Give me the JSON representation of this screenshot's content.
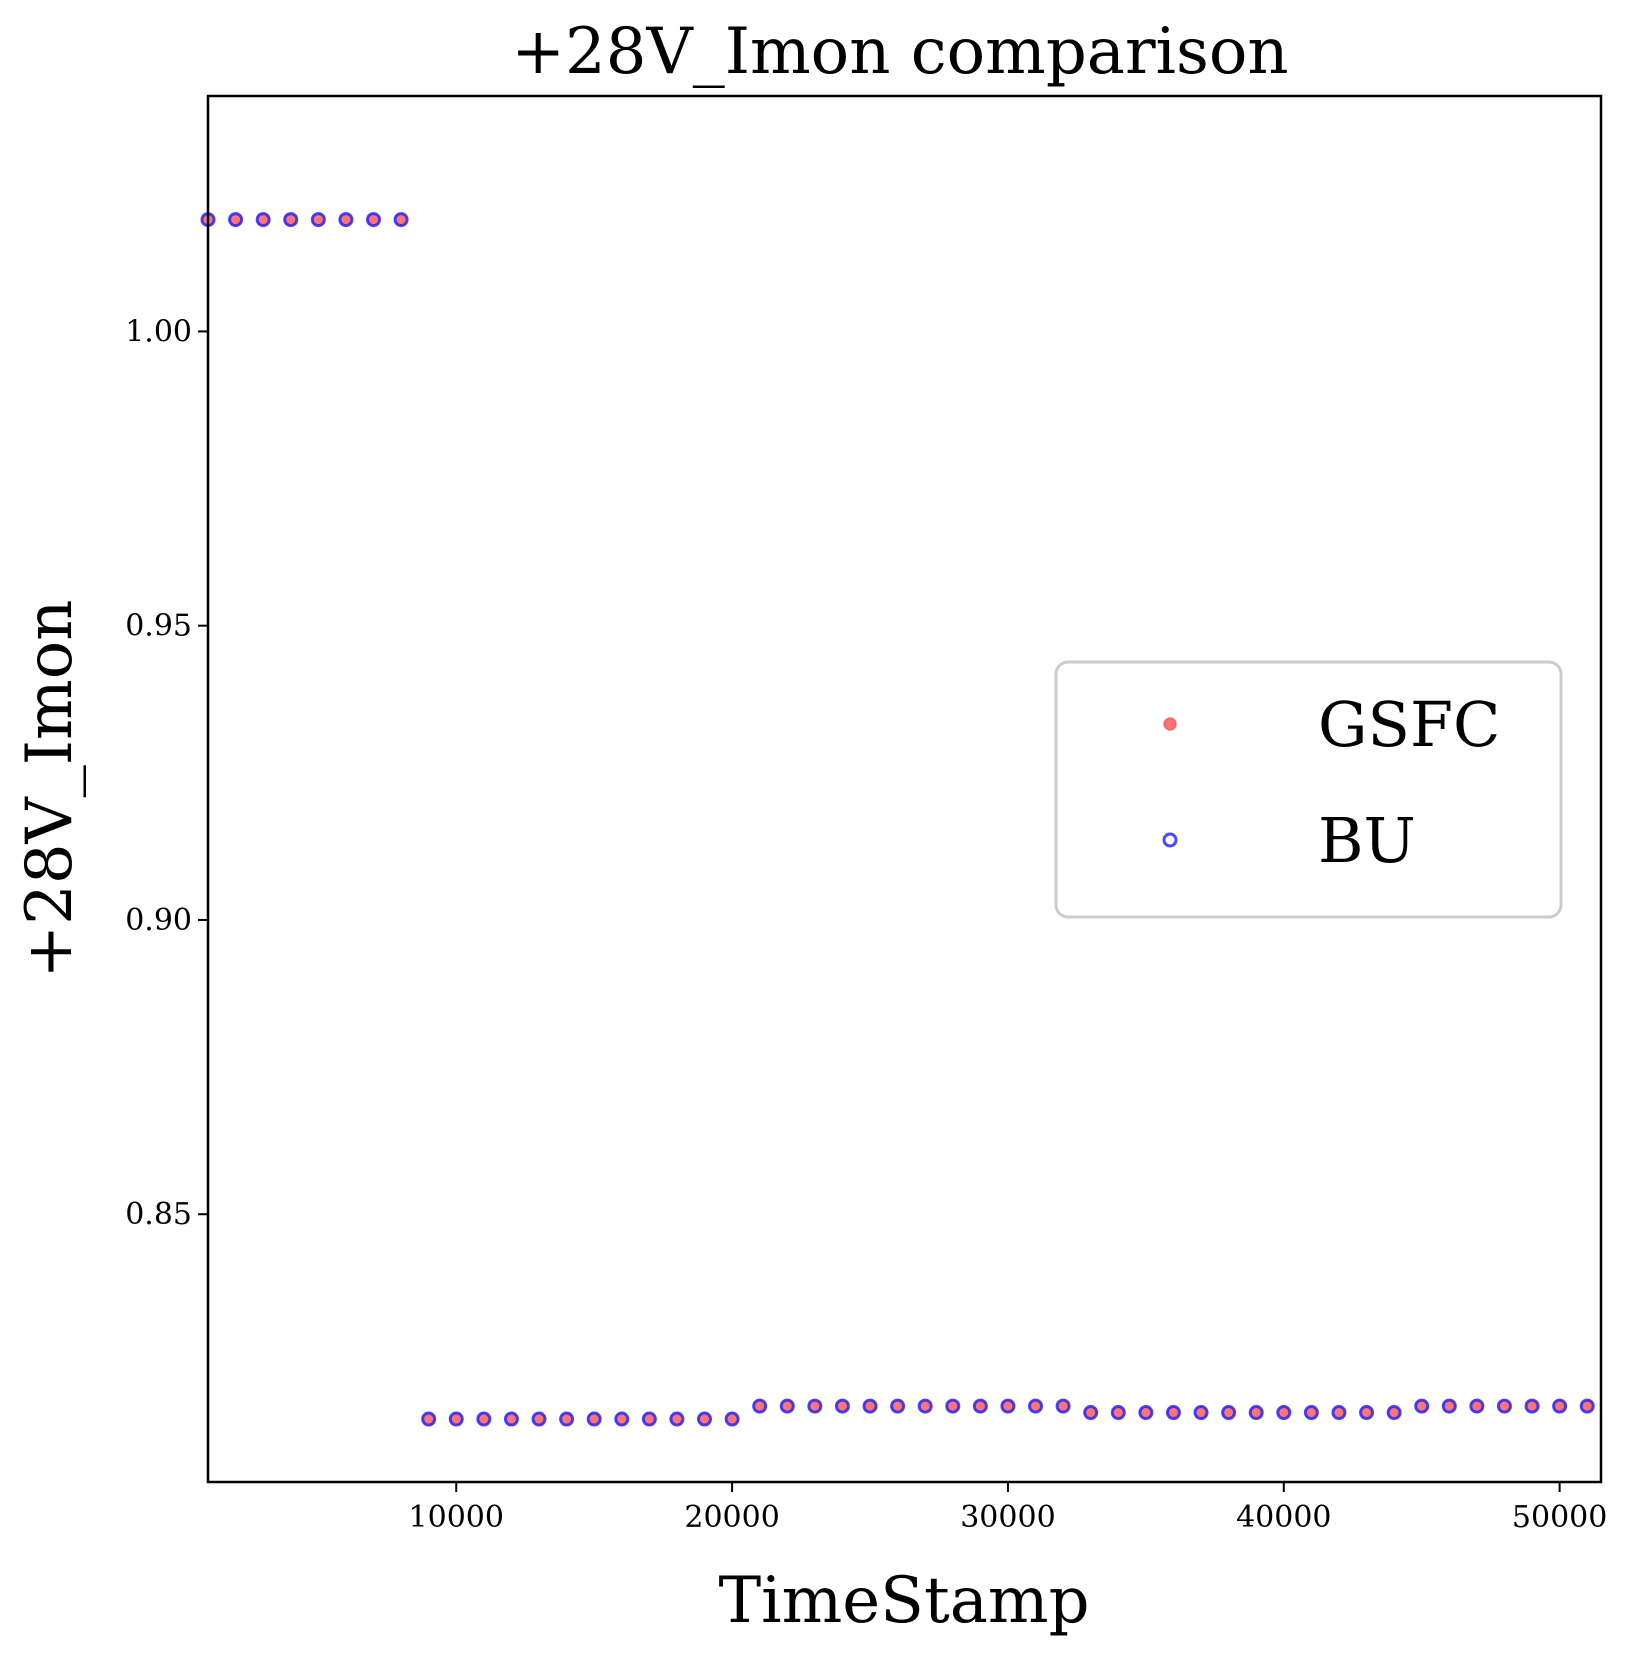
{
  "chart_data": {
    "type": "scatter",
    "title": "+28V_Imon comparison",
    "xlabel": "TimeStamp",
    "ylabel": "+28V_Imon",
    "xlim": [
      1000,
      51500
    ],
    "ylim": [
      0.8045,
      1.04
    ],
    "xticks": [
      10000,
      20000,
      30000,
      40000,
      50000
    ],
    "xtick_labels": [
      "10000",
      "20000",
      "30000",
      "40000",
      "50000"
    ],
    "yticks": [
      0.85,
      0.9,
      0.95,
      1.0
    ],
    "ytick_labels": [
      "0.85",
      "0.90",
      "0.95",
      "1.00"
    ],
    "grid": false,
    "legend_position": "right",
    "x": [
      1000,
      2000,
      3000,
      4000,
      5000,
      6000,
      7000,
      8000,
      9000,
      10000,
      11000,
      12000,
      13000,
      14000,
      15000,
      16000,
      17000,
      18000,
      19000,
      20000,
      21000,
      22000,
      23000,
      24000,
      25000,
      26000,
      27000,
      28000,
      29000,
      30000,
      31000,
      32000,
      33000,
      34000,
      35000,
      36000,
      37000,
      38000,
      39000,
      40000,
      41000,
      42000,
      43000,
      44000,
      45000,
      46000,
      47000,
      48000,
      49000,
      50000,
      51000
    ],
    "series": [
      {
        "name": "GSFC",
        "color": "#ff3b3b",
        "marker": "filled-circle",
        "values": [
          1.019,
          1.019,
          1.019,
          1.019,
          1.019,
          1.019,
          1.019,
          1.019,
          0.8152,
          0.8152,
          0.8152,
          0.8152,
          0.8152,
          0.8152,
          0.8152,
          0.8152,
          0.8152,
          0.8152,
          0.8152,
          0.8152,
          0.8174,
          0.8174,
          0.8174,
          0.8174,
          0.8174,
          0.8174,
          0.8174,
          0.8174,
          0.8174,
          0.8174,
          0.8174,
          0.8174,
          0.8163,
          0.8163,
          0.8163,
          0.8163,
          0.8163,
          0.8163,
          0.8163,
          0.8163,
          0.8163,
          0.8163,
          0.8163,
          0.8163,
          0.8174,
          0.8174,
          0.8174,
          0.8174,
          0.8174,
          0.8174,
          0.8174
        ]
      },
      {
        "name": "BU",
        "color": "#2a2aff",
        "marker": "open-circle",
        "values": [
          1.019,
          1.019,
          1.019,
          1.019,
          1.019,
          1.019,
          1.019,
          1.019,
          0.8152,
          0.8152,
          0.8152,
          0.8152,
          0.8152,
          0.8152,
          0.8152,
          0.8152,
          0.8152,
          0.8152,
          0.8152,
          0.8152,
          0.8174,
          0.8174,
          0.8174,
          0.8174,
          0.8174,
          0.8174,
          0.8174,
          0.8174,
          0.8174,
          0.8174,
          0.8174,
          0.8174,
          0.8163,
          0.8163,
          0.8163,
          0.8163,
          0.8163,
          0.8163,
          0.8163,
          0.8163,
          0.8163,
          0.8163,
          0.8163,
          0.8163,
          0.8174,
          0.8174,
          0.8174,
          0.8174,
          0.8174,
          0.8174,
          0.8174
        ]
      }
    ]
  }
}
